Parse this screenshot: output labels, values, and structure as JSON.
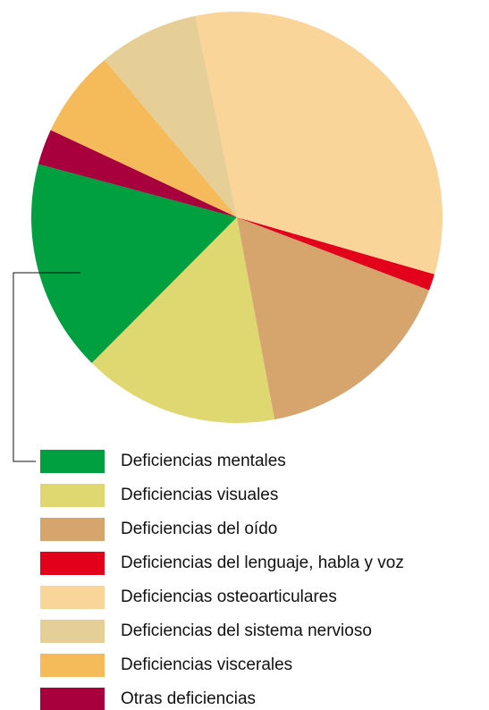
{
  "chart_data": {
    "type": "pie",
    "categories": [
      "Deficiencias mentales",
      "Deficiencias visuales",
      "Deficiencias del oído",
      "Deficiencias del lenguaje, habla y voz",
      "Deficiencias osteoarticulares",
      "Deficiencias del sistema nervioso",
      "Deficiencias viscerales",
      "Otras deficiencias"
    ],
    "values": [
      16.7,
      15.4,
      16.3,
      1.3,
      32.7,
      7.9,
      6.9,
      2.8
    ],
    "colors": [
      "#00a040",
      "#dfd870",
      "#d6a56e",
      "#e3001b",
      "#fad59a",
      "#e6cf97",
      "#f5bb5a",
      "#a8003c"
    ]
  }
}
